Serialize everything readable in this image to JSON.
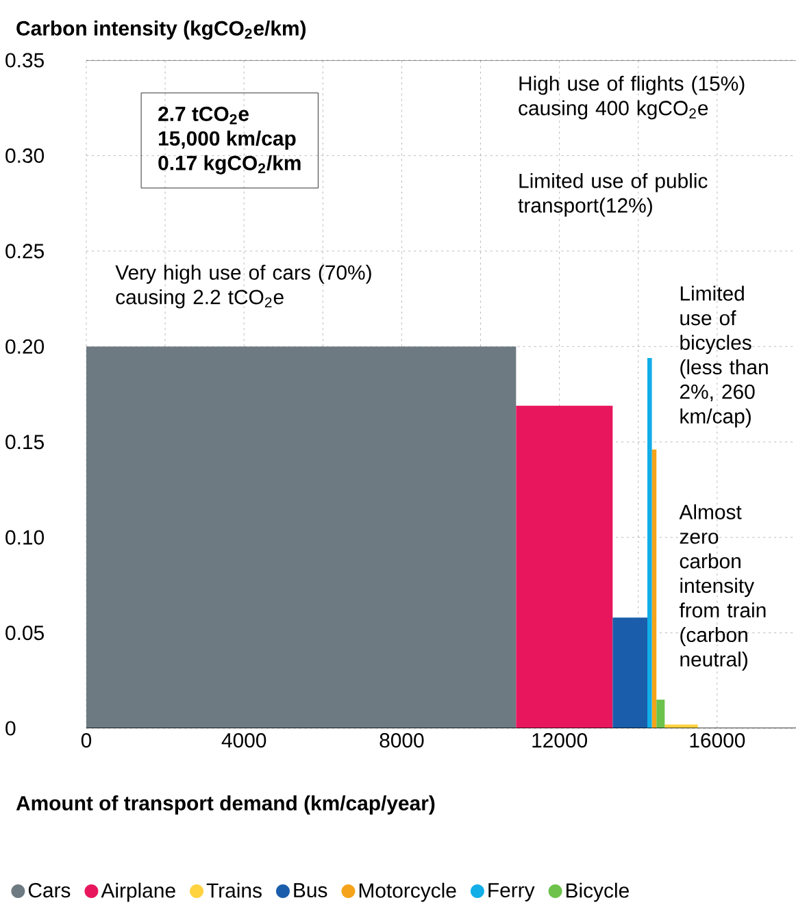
{
  "chart_data": {
    "type": "area",
    "ylabel": "Carbon intensity (kgCO$_{2}$e/km)",
    "xlabel": "Amount of transport demand (km/cap/year)",
    "xlim": [
      0,
      18000
    ],
    "ylim": [
      0,
      0.35
    ],
    "xticks": [
      0,
      {
        "value": 2000,
        "label": null
      },
      4000,
      {
        "value": 6000,
        "label": null
      },
      8000,
      {
        "value": 10000,
        "label": null
      },
      12000,
      {
        "value": 14000,
        "label": null
      },
      16000
    ],
    "yticks": [
      0,
      0.05,
      {
        "value": 0.1,
        "label": "0.10"
      },
      0.15,
      {
        "value": 0.2,
        "label": "0.20"
      },
      0.25,
      {
        "value": 0.3,
        "label": "0.30"
      },
      0.35
    ],
    "grid": true,
    "legend": "bottom",
    "series": [
      {
        "name": "Cars",
        "color": "#6d7a82",
        "x": [
          0,
          10900
        ],
        "values": [
          0.2,
          0.2
        ]
      },
      {
        "name": "Airplane",
        "color": "#e8175d",
        "x": [
          10900,
          13350
        ],
        "values": [
          0.169,
          0.169
        ]
      },
      {
        "name": "Trains",
        "color": "#ffd23f",
        "x": [
          14670,
          15510
        ],
        "values": [
          0.002,
          0.002
        ]
      },
      {
        "name": "Bus",
        "color": "#1a5eab",
        "x": [
          13350,
          14230
        ],
        "values": [
          0.058,
          0.058
        ]
      },
      {
        "name": "Motorcycle",
        "color": "#f5a31a",
        "x": [
          14345,
          14460
        ],
        "values": [
          0.146,
          0.146
        ]
      },
      {
        "name": "Ferry",
        "color": "#11aee8",
        "x": [
          14230,
          14345
        ],
        "values": [
          0.194,
          0.194
        ]
      },
      {
        "name": "Bicycle",
        "color": "#6cc24a",
        "x": [
          14460,
          14670
        ],
        "values": [
          0.015,
          0.015
        ]
      }
    ],
    "annotations": [
      "2.7 tCO$_{2}$e",
      "15,000 km/cap",
      "0.17 kgCO$_{2}$/km",
      "Very high use of cars (70%) causing 2.2 tCO$_{2}$e",
      "High use of flights (15%) causing 400 kgCO$_{2}$e",
      "Limited use of public transport(12%)",
      "Limited use of bicycles (less than 2%, 260 km/cap)",
      "Almost zero carbon intensity from train (carbon neutral)"
    ]
  }
}
